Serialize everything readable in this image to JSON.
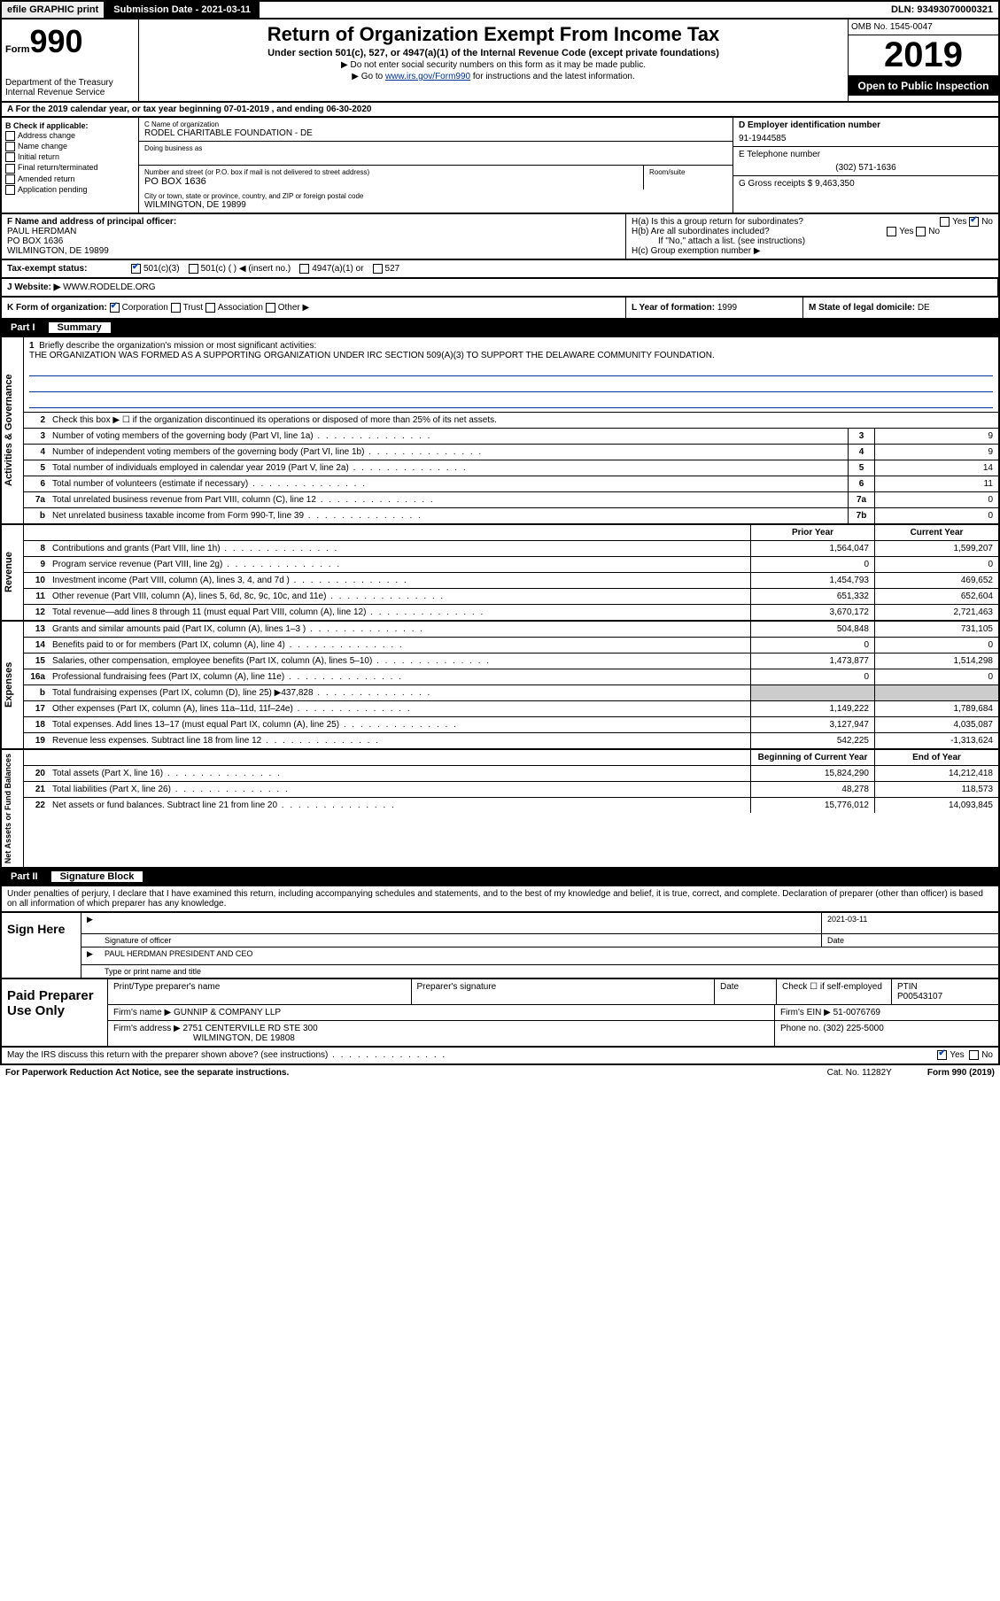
{
  "top": {
    "efile": "efile GRAPHIC print",
    "submission_label": "Submission Date - ",
    "submission_date": "2021-03-11",
    "dln_label": "DLN: ",
    "dln": "93493070000321"
  },
  "header": {
    "form_label": "Form",
    "form_no": "990",
    "dept": "Department of the Treasury\nInternal Revenue Service",
    "title": "Return of Organization Exempt From Income Tax",
    "sub": "Under section 501(c), 527, or 4947(a)(1) of the Internal Revenue Code (except private foundations)",
    "note1": "▶ Do not enter social security numbers on this form as it may be made public.",
    "note2_pre": "▶ Go to ",
    "note2_link": "www.irs.gov/Form990",
    "note2_post": " for instructions and the latest information.",
    "omb": "OMB No. 1545-0047",
    "year": "2019",
    "open": "Open to Public Inspection"
  },
  "line_a": "A For the 2019 calendar year, or tax year beginning 07-01-2019    , and ending 06-30-2020",
  "b": {
    "hdr": "B Check if applicable:",
    "opts": [
      "Address change",
      "Name change",
      "Initial return",
      "Final return/terminated",
      "Amended return",
      "Application pending"
    ]
  },
  "c": {
    "name_label": "C Name of organization",
    "name": "RODEL CHARITABLE FOUNDATION - DE",
    "dba_label": "Doing business as",
    "addr_label": "Number and street (or P.O. box if mail is not delivered to street address)",
    "room_label": "Room/suite",
    "addr": "PO BOX 1636",
    "city_label": "City or town, state or province, country, and ZIP or foreign postal code",
    "city": "WILMINGTON, DE  19899"
  },
  "d": {
    "ein_label": "D Employer identification number",
    "ein": "91-1944585",
    "tel_label": "E Telephone number",
    "tel": "(302) 571-1636",
    "gross_label": "G Gross receipts $ ",
    "gross": "9,463,350"
  },
  "f": {
    "label": "F Name and address of principal officer:",
    "name": "PAUL HERDMAN",
    "addr1": "PO BOX 1636",
    "addr2": "WILMINGTON, DE  19899"
  },
  "h": {
    "a_label": "H(a)  Is this a group return for subordinates?",
    "b_label": "H(b)  Are all subordinates included?",
    "b_note": "If \"No,\" attach a list. (see instructions)",
    "c_label": "H(c)  Group exemption number ▶",
    "yes": "Yes",
    "no": "No"
  },
  "tax_status": {
    "label": "Tax-exempt status:",
    "o1": "501(c)(3)",
    "o2": "501(c) (  ) ◀ (insert no.)",
    "o3": "4947(a)(1) or",
    "o4": "527"
  },
  "j": {
    "label": "J   Website: ▶",
    "val": "WWW.RODELDE.ORG"
  },
  "k": {
    "label": "K Form of organization:",
    "o1": "Corporation",
    "o2": "Trust",
    "o3": "Association",
    "o4": "Other ▶"
  },
  "l": {
    "label": "L Year of formation: ",
    "val": "1999"
  },
  "m": {
    "label": "M State of legal domicile: ",
    "val": "DE"
  },
  "part1": {
    "num": "Part I",
    "title": "Summary"
  },
  "mission": {
    "num": "1",
    "label": "Briefly describe the organization's mission or most significant activities:",
    "text": "THE ORGANIZATION WAS FORMED AS A SUPPORTING ORGANIZATION UNDER IRC SECTION 509(A)(3) TO SUPPORT THE DELAWARE COMMUNITY FOUNDATION."
  },
  "line2": {
    "num": "2",
    "text": "Check this box ▶ ☐ if the organization discontinued its operations or disposed of more than 25% of its net assets."
  },
  "gov_rows": [
    {
      "n": "3",
      "d": "Number of voting members of the governing body (Part VI, line 1a)",
      "b": "3",
      "v": "9"
    },
    {
      "n": "4",
      "d": "Number of independent voting members of the governing body (Part VI, line 1b)",
      "b": "4",
      "v": "9"
    },
    {
      "n": "5",
      "d": "Total number of individuals employed in calendar year 2019 (Part V, line 2a)",
      "b": "5",
      "v": "14"
    },
    {
      "n": "6",
      "d": "Total number of volunteers (estimate if necessary)",
      "b": "6",
      "v": "11"
    },
    {
      "n": "7a",
      "d": "Total unrelated business revenue from Part VIII, column (C), line 12",
      "b": "7a",
      "v": "0"
    },
    {
      "n": "b",
      "d": "Net unrelated business taxable income from Form 990-T, line 39",
      "b": "7b",
      "v": "0"
    }
  ],
  "col_hdrs": {
    "prior": "Prior Year",
    "current": "Current Year",
    "beg": "Beginning of Current Year",
    "end": "End of Year"
  },
  "rev_rows": [
    {
      "n": "8",
      "d": "Contributions and grants (Part VIII, line 1h)",
      "p": "1,564,047",
      "c": "1,599,207"
    },
    {
      "n": "9",
      "d": "Program service revenue (Part VIII, line 2g)",
      "p": "0",
      "c": "0"
    },
    {
      "n": "10",
      "d": "Investment income (Part VIII, column (A), lines 3, 4, and 7d )",
      "p": "1,454,793",
      "c": "469,652"
    },
    {
      "n": "11",
      "d": "Other revenue (Part VIII, column (A), lines 5, 6d, 8c, 9c, 10c, and 11e)",
      "p": "651,332",
      "c": "652,604"
    },
    {
      "n": "12",
      "d": "Total revenue—add lines 8 through 11 (must equal Part VIII, column (A), line 12)",
      "p": "3,670,172",
      "c": "2,721,463"
    }
  ],
  "exp_rows": [
    {
      "n": "13",
      "d": "Grants and similar amounts paid (Part IX, column (A), lines 1–3 )",
      "p": "504,848",
      "c": "731,105"
    },
    {
      "n": "14",
      "d": "Benefits paid to or for members (Part IX, column (A), line 4)",
      "p": "0",
      "c": "0"
    },
    {
      "n": "15",
      "d": "Salaries, other compensation, employee benefits (Part IX, column (A), lines 5–10)",
      "p": "1,473,877",
      "c": "1,514,298"
    },
    {
      "n": "16a",
      "d": "Professional fundraising fees (Part IX, column (A), line 11e)",
      "p": "0",
      "c": "0"
    },
    {
      "n": "b",
      "d": "Total fundraising expenses (Part IX, column (D), line 25) ▶437,828",
      "p": "",
      "c": "",
      "shade": true
    },
    {
      "n": "17",
      "d": "Other expenses (Part IX, column (A), lines 11a–11d, 11f–24e)",
      "p": "1,149,222",
      "c": "1,789,684"
    },
    {
      "n": "18",
      "d": "Total expenses. Add lines 13–17 (must equal Part IX, column (A), line 25)",
      "p": "3,127,947",
      "c": "4,035,087"
    },
    {
      "n": "19",
      "d": "Revenue less expenses. Subtract line 18 from line 12",
      "p": "542,225",
      "c": "-1,313,624"
    }
  ],
  "net_rows": [
    {
      "n": "20",
      "d": "Total assets (Part X, line 16)",
      "p": "15,824,290",
      "c": "14,212,418"
    },
    {
      "n": "21",
      "d": "Total liabilities (Part X, line 26)",
      "p": "48,278",
      "c": "118,573"
    },
    {
      "n": "22",
      "d": "Net assets or fund balances. Subtract line 21 from line 20",
      "p": "15,776,012",
      "c": "14,093,845"
    }
  ],
  "vtabs": {
    "gov": "Activities & Governance",
    "rev": "Revenue",
    "exp": "Expenses",
    "net": "Net Assets or Fund Balances"
  },
  "part2": {
    "num": "Part II",
    "title": "Signature Block"
  },
  "sig_intro": "Under penalties of perjury, I declare that I have examined this return, including accompanying schedules and statements, and to the best of my knowledge and belief, it is true, correct, and complete. Declaration of preparer (other than officer) is based on all information of which preparer has any knowledge.",
  "sign": {
    "here": "Sign Here",
    "sig_label": "Signature of officer",
    "date_label": "Date",
    "date": "2021-03-11",
    "name": "PAUL HERDMAN  PRESIDENT AND CEO",
    "name_label": "Type or print name and title"
  },
  "prep": {
    "here": "Paid Preparer Use Only",
    "name_label": "Print/Type preparer's name",
    "sig_label": "Preparer's signature",
    "date_label": "Date",
    "check_label": "Check ☐ if self-employed",
    "ptin_label": "PTIN",
    "ptin": "P00543107",
    "firm_name_label": "Firm's name    ▶",
    "firm_name": "GUNNIP & COMPANY LLP",
    "firm_ein_label": "Firm's EIN ▶",
    "firm_ein": "51-0076769",
    "firm_addr_label": "Firm's address ▶",
    "firm_addr": "2751 CENTERVILLE RD STE 300",
    "firm_city": "WILMINGTON, DE  19808",
    "phone_label": "Phone no. ",
    "phone": "(302) 225-5000"
  },
  "discuss": {
    "q": "May the IRS discuss this return with the preparer shown above? (see instructions)",
    "yes": "Yes",
    "no": "No"
  },
  "footer": {
    "left": "For Paperwork Reduction Act Notice, see the separate instructions.",
    "mid": "Cat. No. 11282Y",
    "right": "Form 990 (2019)"
  }
}
